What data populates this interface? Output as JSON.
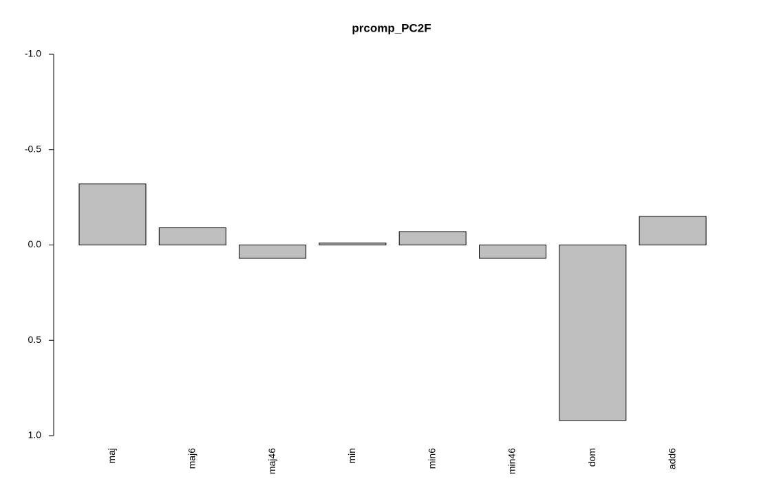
{
  "chart_data": {
    "type": "bar",
    "title": "prcomp_PC2F",
    "categories": [
      "maj",
      "maj6",
      "maj46",
      "min",
      "min6",
      "min46",
      "dom",
      "add6"
    ],
    "values": [
      -0.32,
      -0.09,
      0.07,
      -0.01,
      -0.07,
      0.07,
      0.92,
      -0.15
    ],
    "color": "#bebebe",
    "ylim": [
      1,
      -1
    ],
    "yticks": [
      {
        "value": -1,
        "label": "-1.0"
      },
      -0.5,
      {
        "value": 0,
        "label": "0.0"
      },
      0.5,
      {
        "value": 1,
        "label": "1.0"
      }
    ]
  }
}
